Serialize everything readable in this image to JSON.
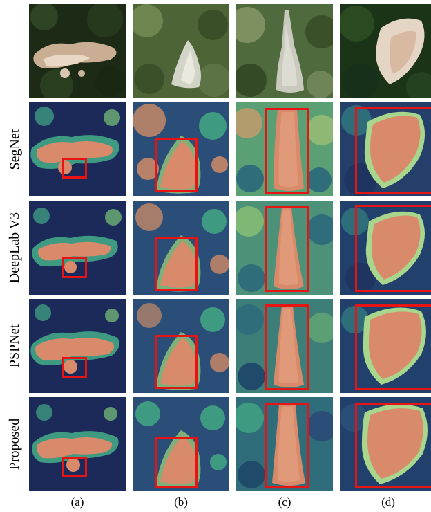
{
  "figure": {
    "row_labels": [
      "SegNet",
      "DeepLab V3",
      "PSPNet",
      "Proposed"
    ],
    "column_labels": [
      "(a)",
      "(b)",
      "(c)",
      "(d)"
    ]
  },
  "colors": {
    "box": "#e81414",
    "heat_low": "#1c2a5a",
    "heat_mid": "#3f9a82",
    "heat_high": "#d98a6a"
  }
}
